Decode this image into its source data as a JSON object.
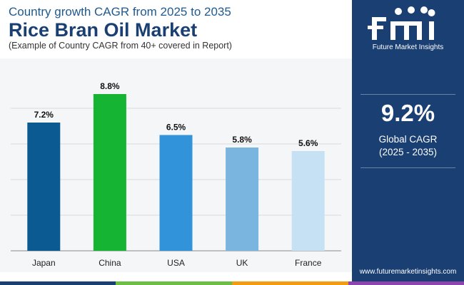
{
  "header": {
    "subtitle": "Country growth CAGR from 2025 to 2035",
    "title": "Rice Bran Oil Market",
    "note": "(Example of Country CAGR from 40+ covered in Report)"
  },
  "sidebar": {
    "logo_text": "Future Market Insights",
    "metric_value": "9.2%",
    "metric_label": "Global CAGR",
    "metric_range": "(2025 - 2035)"
  },
  "footer": {
    "website": "www.futuremarketinsights.com"
  },
  "colors": {
    "brand_navy": "#1a3f73",
    "footer_segments": [
      "#1a3f73",
      "#6cbf43",
      "#f39c12",
      "#8e44ad"
    ]
  },
  "chart_data": {
    "type": "bar",
    "title": "",
    "xlabel": "",
    "ylabel": "",
    "categories": [
      "Japan",
      "China",
      "USA",
      "UK",
      "France"
    ],
    "values": [
      7.2,
      8.8,
      6.5,
      5.8,
      5.6
    ],
    "data_labels": [
      "7.2%",
      "8.8%",
      "6.5%",
      "5.8%",
      "5.6%"
    ],
    "colors": [
      "#0b5a91",
      "#16b433",
      "#3193d9",
      "#79b5df",
      "#c6e1f4"
    ],
    "ylim": [
      0,
      10
    ],
    "grid": true,
    "legend": "none"
  }
}
